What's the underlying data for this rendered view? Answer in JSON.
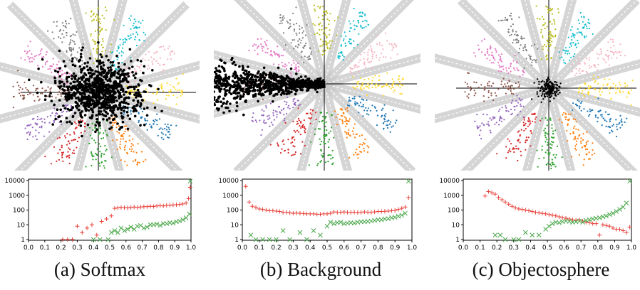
{
  "colors": {
    "classes": [
      "#1f77b4",
      "#ff7f0e",
      "#2ca02c",
      "#d62728",
      "#9467bd",
      "#8c564b",
      "#e377c2",
      "#7f7f7f",
      "#bcbd22",
      "#17becf",
      "#f4b6c2",
      "#ffd92f",
      "#9ad84a"
    ],
    "unknown": "#000000",
    "known_marker": "#e8413a",
    "unknown_marker": "#4aa84a"
  },
  "chart_data": [
    {
      "type": "scatter",
      "title": "(a) Softmax",
      "features": "2-D deep features",
      "unknown_spread": "large",
      "hist": {
        "type": "scatter",
        "yscale": "log",
        "ylim": [
          1,
          10000
        ],
        "xlim": [
          0.0,
          1.0
        ],
        "xticks": [
          "0.0",
          "0.1",
          "0.2",
          "0.3",
          "0.4",
          "0.5",
          "0.6",
          "0.7",
          "0.8",
          "0.9",
          "1.0"
        ],
        "yticks": [
          "1",
          "10",
          "100",
          "1000",
          "10000"
        ],
        "series": [
          {
            "marker": "+",
            "color": "#e8413a",
            "x": [
              0.21,
              0.24,
              0.27,
              0.3,
              0.33,
              0.36,
              0.39,
              0.42,
              0.45,
              0.48,
              0.51,
              0.53,
              0.55,
              0.57,
              0.59,
              0.61,
              0.63,
              0.65,
              0.67,
              0.69,
              0.71,
              0.73,
              0.75,
              0.77,
              0.79,
              0.81,
              0.83,
              0.85,
              0.87,
              0.89,
              0.91,
              0.93,
              0.95,
              0.97,
              0.985,
              0.995
            ],
            "y": [
              1,
              1,
              1,
              8,
              3,
              6,
              10,
              2,
              17,
              25,
              40,
              130,
              140,
              150,
              145,
              140,
              150,
              160,
              150,
              160,
              170,
              170,
              180,
              175,
              190,
              200,
              190,
              210,
              210,
              220,
              230,
              240,
              260,
              300,
              600,
              3500
            ]
          },
          {
            "marker": "x",
            "color": "#4aa84a",
            "x": [
              0.4,
              0.44,
              0.49,
              0.51,
              0.53,
              0.55,
              0.57,
              0.59,
              0.61,
              0.63,
              0.65,
              0.67,
              0.69,
              0.71,
              0.73,
              0.75,
              0.77,
              0.79,
              0.81,
              0.83,
              0.85,
              0.87,
              0.89,
              0.91,
              0.93,
              0.95,
              0.97,
              0.99,
              0.995
            ],
            "y": [
              1,
              1,
              1,
              3,
              4,
              3,
              6,
              4,
              5,
              7,
              5,
              8,
              9,
              6,
              7,
              10,
              10,
              11,
              9,
              12,
              12,
              14,
              13,
              16,
              18,
              22,
              30,
              55,
              9000
            ]
          }
        ]
      }
    },
    {
      "type": "scatter",
      "title": "(b) Background",
      "features": "2-D deep features",
      "unknown_spread": "left-sector",
      "hist": {
        "type": "scatter",
        "yscale": "log",
        "ylim": [
          1,
          10000
        ],
        "xlim": [
          0.0,
          1.0
        ],
        "xticks": [
          "0.0",
          "0.1",
          "0.2",
          "0.3",
          "0.4",
          "0.5",
          "0.6",
          "0.7",
          "0.8",
          "0.9",
          "1.0"
        ],
        "yticks": [
          "1",
          "10",
          "100",
          "1000",
          "10000"
        ],
        "series": [
          {
            "marker": "+",
            "color": "#e8413a",
            "x": [
              0.02,
              0.04,
              0.06,
              0.08,
              0.1,
              0.12,
              0.14,
              0.16,
              0.18,
              0.2,
              0.22,
              0.24,
              0.26,
              0.28,
              0.3,
              0.32,
              0.34,
              0.36,
              0.38,
              0.4,
              0.42,
              0.44,
              0.46,
              0.48,
              0.5,
              0.52,
              0.54,
              0.56,
              0.58,
              0.6,
              0.62,
              0.64,
              0.66,
              0.68,
              0.7,
              0.72,
              0.74,
              0.76,
              0.78,
              0.8,
              0.82,
              0.84,
              0.86,
              0.88,
              0.9,
              0.92,
              0.94,
              0.96,
              0.98
            ],
            "y": [
              4000,
              350,
              180,
              150,
              120,
              110,
              100,
              90,
              90,
              85,
              80,
              70,
              70,
              65,
              60,
              62,
              60,
              58,
              55,
              55,
              55,
              52,
              52,
              55,
              55,
              60,
              75,
              70,
              70,
              75,
              70,
              70,
              72,
              68,
              70,
              75,
              72,
              70,
              75,
              80,
              80,
              82,
              85,
              90,
              95,
              110,
              130,
              160,
              700
            ]
          },
          {
            "marker": "x",
            "color": "#4aa84a",
            "x": [
              0.05,
              0.08,
              0.12,
              0.16,
              0.2,
              0.24,
              0.28,
              0.34,
              0.38,
              0.42,
              0.46,
              0.5,
              0.52,
              0.54,
              0.56,
              0.58,
              0.6,
              0.62,
              0.64,
              0.66,
              0.68,
              0.7,
              0.72,
              0.74,
              0.76,
              0.78,
              0.8,
              0.82,
              0.84,
              0.86,
              0.88,
              0.9,
              0.92,
              0.94,
              0.96,
              0.98
            ],
            "y": [
              2,
              1,
              1,
              1,
              1,
              4,
              1,
              3,
              1,
              4,
              2,
              8,
              15,
              12,
              14,
              15,
              12,
              13,
              14,
              13,
              15,
              16,
              16,
              17,
              18,
              20,
              22,
              22,
              25,
              26,
              30,
              32,
              38,
              45,
              60,
              9000
            ]
          }
        ]
      }
    },
    {
      "type": "scatter",
      "title": "(c) Objectosphere",
      "features": "2-D deep features",
      "unknown_spread": "small-center",
      "hist": {
        "type": "scatter",
        "yscale": "log",
        "ylim": [
          1,
          10000
        ],
        "xlim": [
          0.0,
          1.0
        ],
        "xticks": [
          "0.0",
          "0.1",
          "0.2",
          "0.3",
          "0.4",
          "0.5",
          "0.6",
          "0.7",
          "0.8",
          "0.9",
          "1.0"
        ],
        "yticks": [
          "1",
          "10",
          "100",
          "1000",
          "10000"
        ],
        "series": [
          {
            "marker": "+",
            "color": "#e8413a",
            "x": [
              0.13,
              0.15,
              0.17,
              0.19,
              0.21,
              0.23,
              0.25,
              0.27,
              0.29,
              0.31,
              0.33,
              0.35,
              0.37,
              0.39,
              0.41,
              0.43,
              0.45,
              0.47,
              0.49,
              0.51,
              0.53,
              0.55,
              0.57,
              0.59,
              0.61,
              0.63,
              0.65,
              0.67,
              0.69,
              0.71,
              0.73,
              0.75,
              0.77,
              0.79,
              0.81,
              0.83,
              0.85,
              0.87,
              0.89,
              0.91,
              0.93,
              0.95,
              0.97,
              0.99
            ],
            "y": [
              900,
              1800,
              1500,
              1200,
              700,
              500,
              350,
              250,
              180,
              140,
              120,
              110,
              100,
              90,
              80,
              70,
              65,
              60,
              55,
              50,
              45,
              40,
              35,
              30,
              28,
              25,
              22,
              20,
              22,
              18,
              15,
              14,
              12,
              12,
              2,
              10,
              9,
              8,
              6,
              5,
              5,
              4,
              3,
              7
            ]
          },
          {
            "marker": "x",
            "color": "#4aa84a",
            "x": [
              0.19,
              0.22,
              0.25,
              0.3,
              0.33,
              0.37,
              0.41,
              0.45,
              0.49,
              0.51,
              0.53,
              0.55,
              0.57,
              0.59,
              0.61,
              0.63,
              0.65,
              0.67,
              0.69,
              0.71,
              0.73,
              0.75,
              0.77,
              0.79,
              0.81,
              0.83,
              0.85,
              0.87,
              0.89,
              0.91,
              0.93,
              0.95,
              0.97,
              0.99
            ],
            "y": [
              2,
              2,
              1,
              1,
              1,
              3,
              2,
              2,
              5,
              8,
              12,
              15,
              14,
              16,
              18,
              17,
              15,
              16,
              18,
              15,
              20,
              22,
              25,
              28,
              30,
              35,
              40,
              50,
              60,
              80,
              110,
              160,
              300,
              9000
            ]
          }
        ]
      }
    }
  ]
}
